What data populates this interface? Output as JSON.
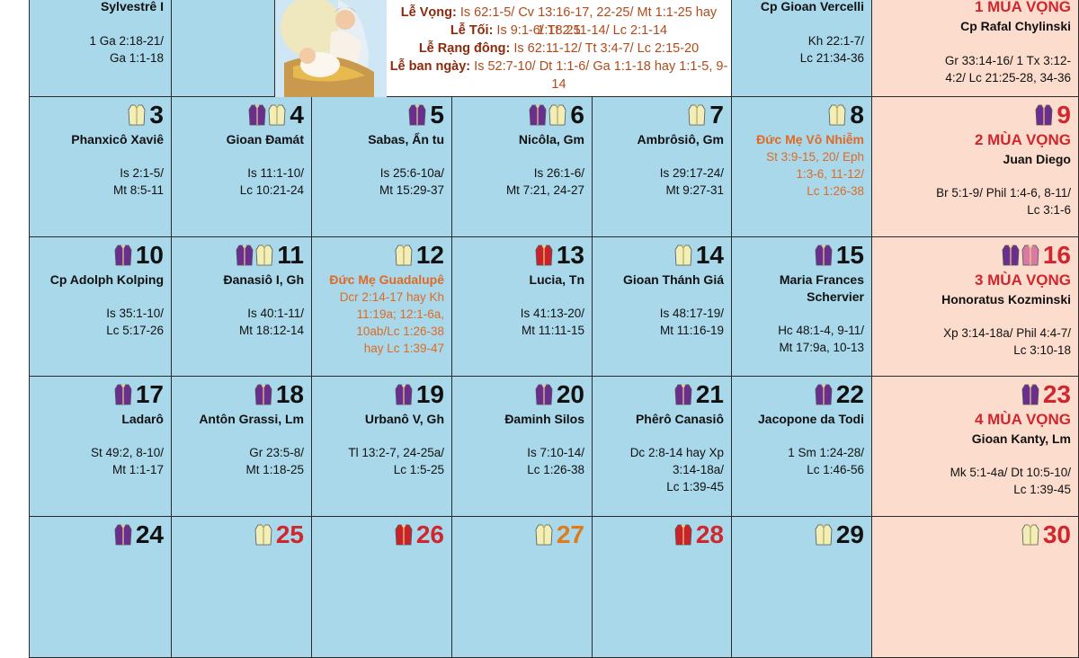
{
  "christmas": {
    "lines": [
      {
        "label": "Lễ Vọng:",
        "text": " Is 62:1-5/ Cv 13:16-17, 22-25/ Mt 1:1-25 hay 1:18 25"
      },
      {
        "label": "Lễ Tối:",
        "text": " Is 9:1-6/ Tt 2:11-14/ Lc 2:1-14"
      },
      {
        "label": "Lễ Rạng đông:",
        "text": " Is 62:11-12/ Tt 3:4-7/ Lc 2:15-20"
      },
      {
        "label": "Lễ ban ngày:",
        "text": " Is 52:7-10/ Dt 1:1-6/ Ga 1:1-18 hay 1:1-5, 9-14"
      }
    ]
  },
  "top_row": {
    "col1": {
      "title": "Sylvestrê I",
      "read1": "1 Ga 2:18-21/",
      "read2": "Ga 1:1-18"
    },
    "col6": {
      "title": "Cp Gioan Vercelli",
      "read1": "Kh 22:1-7/",
      "read2": "Lc 21:34-36"
    },
    "col7": {
      "title1": "1 MÙA VỌNG",
      "title2": "Cp Rafal Chylinski",
      "read1": "Gr 33:14-16/ 1 Tx 3:12-",
      "read2": "4:2/ Lc 21:25-28, 34-36"
    }
  },
  "colors": {
    "cell_bg": "#a8d8ea",
    "sunday_bg": "#fcdccd",
    "red": "#d0262d",
    "orange": "#e06a24",
    "purple": "#6a2f8e",
    "white_vest": "#f1eeb8",
    "pink": "#d87aa4"
  },
  "days": [
    {
      "n": "3",
      "vest": [
        "white"
      ],
      "title": "Phanxicô Xaviê",
      "reads": [
        "Is 2:1-5/",
        "Mt 8:5-11"
      ]
    },
    {
      "n": "4",
      "vest": [
        "purple",
        "white"
      ],
      "title": "Gioan Đamát",
      "reads": [
        "Is 11:1-10/",
        "Lc 10:21-24"
      ]
    },
    {
      "n": "5",
      "vest": [
        "purple"
      ],
      "title": "Sabas, Ẩn tu",
      "reads": [
        "Is 25:6-10a/",
        "Mt 15:29-37"
      ]
    },
    {
      "n": "6",
      "vest": [
        "purple",
        "white"
      ],
      "title": "Nicôla, Gm",
      "reads": [
        "Is 26:1-6/",
        "Mt 7:21, 24-27"
      ]
    },
    {
      "n": "7",
      "vest": [
        "white"
      ],
      "title": "Ambrôsiô, Gm",
      "reads": [
        "Is 29:17-24/",
        "Mt 9:27-31"
      ]
    },
    {
      "n": "8",
      "vest": [
        "white"
      ],
      "title": "Đức Mẹ Vô Nhiễm",
      "style": "orange",
      "reads": [
        "St 3:9-15, 20/ Eph",
        "1:3-6, 11-12/",
        "Lc 1:26-38"
      ]
    },
    {
      "n": "9",
      "vest": [
        "purple"
      ],
      "sun": true,
      "title1": "2 MÙA VỌNG",
      "title2": "Juan Diego",
      "reads": [
        "Br 5:1-9/ Phil 1:4-6, 8-11/",
        "Lc 3:1-6"
      ]
    },
    {
      "n": "10",
      "vest": [
        "purple"
      ],
      "title": "Cp Adolph Kolping",
      "reads": [
        "Is 35:1-10/",
        "Lc 5:17-26"
      ]
    },
    {
      "n": "11",
      "vest": [
        "purple",
        "white"
      ],
      "title": "Đanasiô I, Gh",
      "reads": [
        "Is 40:1-11/",
        "Mt 18:12-14"
      ]
    },
    {
      "n": "12",
      "vest": [
        "white"
      ],
      "title": "Đức Mẹ Guadalupê",
      "style": "orange",
      "reads": [
        "Dcr 2:14-17 hay Kh",
        "11:19a; 12:1-6a,",
        "10ab/Lc 1:26-38",
        "hay Lc 1:39-47"
      ]
    },
    {
      "n": "13",
      "vest": [
        "red"
      ],
      "title": "Lucia, Tn",
      "reads": [
        "Is 41:13-20/",
        "Mt 11:11-15"
      ]
    },
    {
      "n": "14",
      "vest": [
        "white"
      ],
      "title": "Gioan Thánh Giá",
      "reads": [
        "Is 48:17-19/",
        "Mt 11:16-19"
      ]
    },
    {
      "n": "15",
      "vest": [
        "purple"
      ],
      "title": "Maria Frances",
      "title_b": "Schervier",
      "reads": [
        "Hc 48:1-4, 9-11/",
        "Mt 17:9a, 10-13"
      ]
    },
    {
      "n": "16",
      "vest": [
        "purple",
        "pink"
      ],
      "sun": true,
      "title1": "3 MÙA VỌNG",
      "title2": "Honoratus Kozminski",
      "reads": [
        "Xp 3:14-18a/ Phil 4:4-7/",
        "Lc 3:10-18"
      ]
    },
    {
      "n": "17",
      "vest": [
        "purple"
      ],
      "title": "Ladarô",
      "reads": [
        "St 49:2, 8-10/",
        "Mt 1:1-17"
      ]
    },
    {
      "n": "18",
      "vest": [
        "purple"
      ],
      "title": "Antôn Grassi, Lm",
      "reads": [
        "Gr 23:5-8/",
        "Mt 1:18-25"
      ]
    },
    {
      "n": "19",
      "vest": [
        "purple"
      ],
      "title": "Urbanô V, Gh",
      "reads": [
        "Tl 13:2-7, 24-25a/",
        "Lc 1:5-25"
      ]
    },
    {
      "n": "20",
      "vest": [
        "purple"
      ],
      "title": "Đaminh Silos",
      "reads": [
        "Is 7:10-14/",
        "Lc 1:26-38"
      ]
    },
    {
      "n": "21",
      "vest": [
        "purple"
      ],
      "title": "Phêrô Canasiô",
      "reads": [
        "Dc 2:8-14 hay Xp",
        "3:14-18a/",
        "Lc 1:39-45"
      ]
    },
    {
      "n": "22",
      "vest": [
        "purple"
      ],
      "title": "Jacopone da Todi",
      "reads": [
        "1 Sm 1:24-28/",
        "Lc 1:46-56"
      ]
    },
    {
      "n": "23",
      "vest": [
        "purple"
      ],
      "sun": true,
      "title1": "4 MÙA VỌNG",
      "title2": "Gioan Kanty, Lm",
      "reads": [
        "Mk 5:1-4a/ Dt 10:5-10/",
        "Lc 1:39-45"
      ]
    },
    {
      "n": "24",
      "vest": [
        "purple"
      ],
      "reads": []
    },
    {
      "n": "25",
      "vest": [
        "white"
      ],
      "numstyle": "red",
      "reads": []
    },
    {
      "n": "26",
      "vest": [
        "red"
      ],
      "numstyle": "red",
      "reads": []
    },
    {
      "n": "27",
      "vest": [
        "white"
      ],
      "numstyle": "orange",
      "reads": []
    },
    {
      "n": "28",
      "vest": [
        "red"
      ],
      "numstyle": "red",
      "reads": []
    },
    {
      "n": "29",
      "vest": [
        "white"
      ],
      "reads": []
    },
    {
      "n": "30",
      "vest": [
        "white"
      ],
      "sun": true,
      "numstyle": "red",
      "reads": []
    }
  ]
}
